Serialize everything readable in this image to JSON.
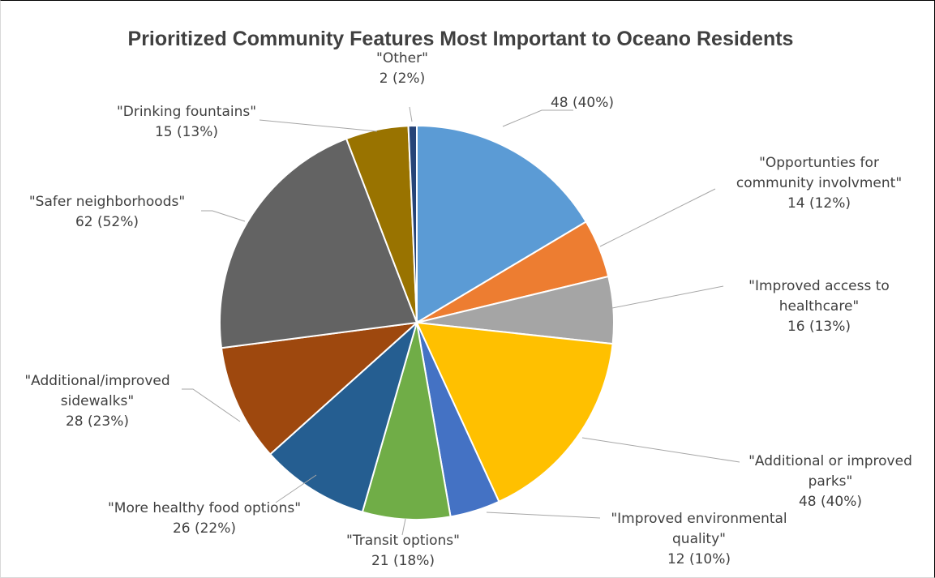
{
  "chart_data": {
    "type": "pie",
    "title": "Prioritized Community Features Most Important to Oceano Residents",
    "slices": [
      {
        "lines": [
          "48 (40%)"
        ],
        "value": 48,
        "color": "#5b9bd5"
      },
      {
        "lines": [
          "\"Opportunties for",
          "community involvment\"",
          "14 (12%)"
        ],
        "value": 14,
        "color": "#ed7d31"
      },
      {
        "lines": [
          "\"Improved access to",
          "healthcare\"",
          "16 (13%)"
        ],
        "value": 16,
        "color": "#a5a5a5"
      },
      {
        "lines": [
          "\"Additional or improved",
          "parks\"",
          "48 (40%)"
        ],
        "value": 48,
        "color": "#ffc000"
      },
      {
        "lines": [
          "\"Improved environmental",
          "quality\"",
          "12 (10%)"
        ],
        "value": 12,
        "color": "#4472c4"
      },
      {
        "lines": [
          "\"Transit options\"",
          "21 (18%)"
        ],
        "value": 21,
        "color": "#70ad47"
      },
      {
        "lines": [
          "\"More healthy food options\"",
          "26 (22%)"
        ],
        "value": 26,
        "color": "#255e91"
      },
      {
        "lines": [
          "\"Additional/improved",
          "sidewalks\"",
          "28 (23%)"
        ],
        "value": 28,
        "color": "#9e480e"
      },
      {
        "lines": [
          "\"Safer neighborhoods\"",
          "62 (52%)"
        ],
        "value": 62,
        "color": "#636363"
      },
      {
        "lines": [
          "\"Drinking fountains\"",
          "15 (13%)"
        ],
        "value": 15,
        "color": "#997300"
      },
      {
        "lines": [
          "\"Other\"",
          "2 (2%)"
        ],
        "value": 2,
        "color": "#264478"
      }
    ]
  }
}
